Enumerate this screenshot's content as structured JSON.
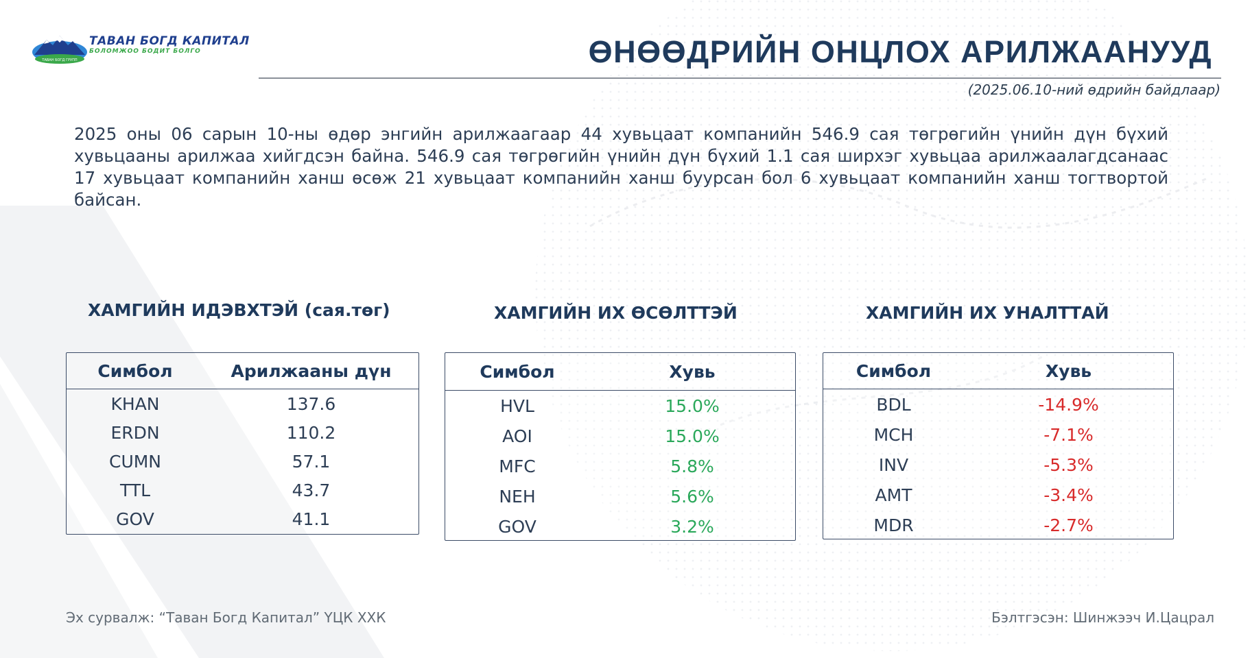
{
  "brand": {
    "name": "ТАВАН БОГД КАПИТАЛ",
    "tagline": "БОЛОМЖОО БОДИТ БОЛГО",
    "badge": "ТАВАН БОГД ГРУПП",
    "colors": {
      "blue": "#1f3f8e",
      "green": "#3aa84a",
      "sky": "#2f86d6"
    }
  },
  "header": {
    "title": "ӨНӨӨДРИЙН ОНЦЛОХ АРИЛЖААНУУД",
    "as_of": "(2025.06.10-ний өдрийн байдлаар)"
  },
  "summary": "2025 оны 06 сарын 10-ны өдөр энгийн арилжаагаар 44 хувьцаат компанийн 546.9 сая төгрөгийн үнийн дүн бүхий хувьцааны арилжаа хийгдсэн байна. 546.9 сая төгрөгийн үнийн дүн бүхий 1.1 сая ширхэг хувьцаа арилжаалагдсанаас 17 хувьцаат компанийн ханш өсөж 21 хувьцаат компанийн ханш буурсан бол 6 хувьцаат компанийн ханш тогтвортой байсан.",
  "tables": {
    "active": {
      "title": "ХАМГИЙН ИДЭВХТЭЙ (сая.төг)",
      "headers": [
        "Симбол",
        "Арилжааны дүн"
      ],
      "rows": [
        [
          "KHAN",
          "137.6"
        ],
        [
          "ERDN",
          "110.2"
        ],
        [
          "CUMN",
          "57.1"
        ],
        [
          "TTL",
          "43.7"
        ],
        [
          "GOV",
          "41.1"
        ]
      ]
    },
    "gainers": {
      "title": "ХАМГИЙН ИХ ӨСӨЛТТЭЙ",
      "headers": [
        "Симбол",
        "Хувь"
      ],
      "rows": [
        [
          "HVL",
          "15.0%"
        ],
        [
          "AOI",
          "15.0%"
        ],
        [
          "MFC",
          "5.8%"
        ],
        [
          "NEH",
          "5.6%"
        ],
        [
          "GOV",
          "3.2%"
        ]
      ]
    },
    "losers": {
      "title": "ХАМГИЙН ИХ УНАЛТТАЙ",
      "headers": [
        "Симбол",
        "Хувь"
      ],
      "rows": [
        [
          "BDL",
          "-14.9%"
        ],
        [
          "MCH",
          "-7.1%"
        ],
        [
          "INV",
          "-5.3%"
        ],
        [
          "AMT",
          "-3.4%"
        ],
        [
          "MDR",
          "-2.7%"
        ]
      ]
    }
  },
  "footer": {
    "source": "Эх сурвалж: “Таван Богд Капитал” ҮЦК ХХК",
    "prepared_by": "Бэлтгэсэн: Шинжээч И.Цацрал"
  },
  "colors": {
    "title": "#1f3a5c",
    "positive": "#2aa85a",
    "negative": "#d82a2a"
  }
}
